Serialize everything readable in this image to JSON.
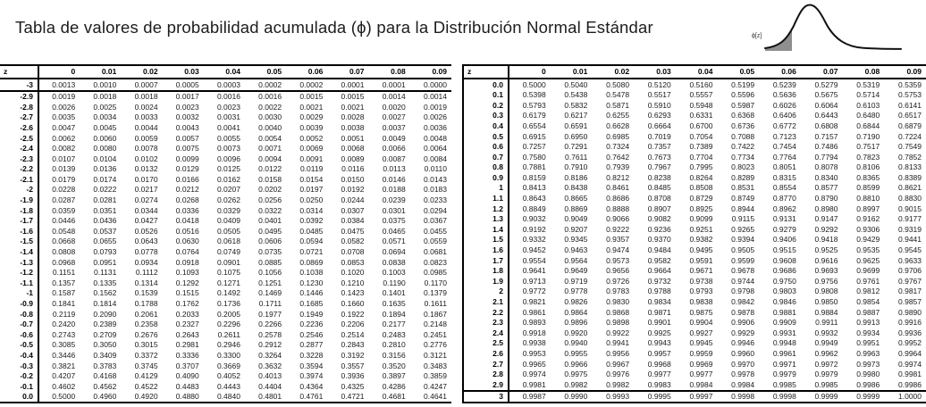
{
  "title": "Tabla de valores de probabilidad acumulada (ϕ) para la Distribución Normal Estándar",
  "curve_icon": {
    "label": "ϕ[z]",
    "shade_color": "#8f8f8f",
    "curve_color": "#111111"
  },
  "corner_header": "z",
  "column_headers": [
    "0",
    "0.01",
    "0.02",
    "0.03",
    "0.04",
    "0.05",
    "0.06",
    "0.07",
    "0.08",
    "0.09"
  ],
  "tables": [
    {
      "name": "negative-z",
      "rows": [
        {
          "z": "-3",
          "values": [
            "0.0013",
            "0.0010",
            "0.0007",
            "0.0005",
            "0.0003",
            "0.0002",
            "0.0002",
            "0.0001",
            "0.0001",
            "0.0000"
          ]
        },
        {
          "z": "-2.9",
          "values": [
            "0.0019",
            "0.0018",
            "0.0018",
            "0.0017",
            "0.0016",
            "0.0016",
            "0.0015",
            "0.0015",
            "0.0014",
            "0.0014"
          ]
        },
        {
          "z": "-2.8",
          "values": [
            "0.0026",
            "0.0025",
            "0.0024",
            "0.0023",
            "0.0023",
            "0.0022",
            "0.0021",
            "0.0021",
            "0.0020",
            "0.0019"
          ]
        },
        {
          "z": "-2.7",
          "values": [
            "0.0035",
            "0.0034",
            "0.0033",
            "0.0032",
            "0.0031",
            "0.0030",
            "0.0029",
            "0.0028",
            "0.0027",
            "0.0026"
          ]
        },
        {
          "z": "-2.6",
          "values": [
            "0.0047",
            "0.0045",
            "0.0044",
            "0.0043",
            "0.0041",
            "0.0040",
            "0.0039",
            "0.0038",
            "0.0037",
            "0.0036"
          ]
        },
        {
          "z": "-2.5",
          "values": [
            "0.0062",
            "0.0060",
            "0.0059",
            "0.0057",
            "0.0055",
            "0.0054",
            "0.0052",
            "0.0051",
            "0.0049",
            "0.0048"
          ]
        },
        {
          "z": "-2.4",
          "values": [
            "0.0082",
            "0.0080",
            "0.0078",
            "0.0075",
            "0.0073",
            "0.0071",
            "0.0069",
            "0.0068",
            "0.0066",
            "0.0064"
          ]
        },
        {
          "z": "-2.3",
          "values": [
            "0.0107",
            "0.0104",
            "0.0102",
            "0.0099",
            "0.0096",
            "0.0094",
            "0.0091",
            "0.0089",
            "0.0087",
            "0.0084"
          ]
        },
        {
          "z": "-2.2",
          "values": [
            "0.0139",
            "0.0136",
            "0.0132",
            "0.0129",
            "0.0125",
            "0.0122",
            "0.0119",
            "0.0116",
            "0.0113",
            "0.0110"
          ]
        },
        {
          "z": "-2.1",
          "values": [
            "0.0179",
            "0.0174",
            "0.0170",
            "0.0166",
            "0.0162",
            "0.0158",
            "0.0154",
            "0.0150",
            "0.0146",
            "0.0143"
          ]
        },
        {
          "z": "-2",
          "values": [
            "0.0228",
            "0.0222",
            "0.0217",
            "0.0212",
            "0.0207",
            "0.0202",
            "0.0197",
            "0.0192",
            "0.0188",
            "0.0183"
          ]
        },
        {
          "z": "-1.9",
          "values": [
            "0.0287",
            "0.0281",
            "0.0274",
            "0.0268",
            "0.0262",
            "0.0256",
            "0.0250",
            "0.0244",
            "0.0239",
            "0.0233"
          ]
        },
        {
          "z": "-1.8",
          "values": [
            "0.0359",
            "0.0351",
            "0.0344",
            "0.0336",
            "0.0329",
            "0.0322",
            "0.0314",
            "0.0307",
            "0.0301",
            "0.0294"
          ]
        },
        {
          "z": "-1.7",
          "values": [
            "0.0446",
            "0.0436",
            "0.0427",
            "0.0418",
            "0.0409",
            "0.0401",
            "0.0392",
            "0.0384",
            "0.0375",
            "0.0367"
          ]
        },
        {
          "z": "-1.6",
          "values": [
            "0.0548",
            "0.0537",
            "0.0526",
            "0.0516",
            "0.0505",
            "0.0495",
            "0.0485",
            "0.0475",
            "0.0465",
            "0.0455"
          ]
        },
        {
          "z": "-1.5",
          "values": [
            "0.0668",
            "0.0655",
            "0.0643",
            "0.0630",
            "0.0618",
            "0.0606",
            "0.0594",
            "0.0582",
            "0.0571",
            "0.0559"
          ]
        },
        {
          "z": "-1.4",
          "values": [
            "0.0808",
            "0.0793",
            "0.0778",
            "0.0764",
            "0.0749",
            "0.0735",
            "0.0721",
            "0.0708",
            "0.0694",
            "0.0681"
          ]
        },
        {
          "z": "-1.3",
          "values": [
            "0.0968",
            "0.0951",
            "0.0934",
            "0.0918",
            "0.0901",
            "0.0885",
            "0.0869",
            "0.0853",
            "0.0838",
            "0.0823"
          ]
        },
        {
          "z": "-1.2",
          "values": [
            "0.1151",
            "0.1131",
            "0.1112",
            "0.1093",
            "0.1075",
            "0.1056",
            "0.1038",
            "0.1020",
            "0.1003",
            "0.0985"
          ]
        },
        {
          "z": "-1.1",
          "values": [
            "0.1357",
            "0.1335",
            "0.1314",
            "0.1292",
            "0.1271",
            "0.1251",
            "0.1230",
            "0.1210",
            "0.1190",
            "0.1170"
          ]
        },
        {
          "z": "-1",
          "values": [
            "0.1587",
            "0.1562",
            "0.1539",
            "0.1515",
            "0.1492",
            "0.1469",
            "0.1446",
            "0.1423",
            "0.1401",
            "0.1379"
          ]
        },
        {
          "z": "-0.9",
          "values": [
            "0.1841",
            "0.1814",
            "0.1788",
            "0.1762",
            "0.1736",
            "0.1711",
            "0.1685",
            "0.1660",
            "0.1635",
            "0.1611"
          ]
        },
        {
          "z": "-0.8",
          "values": [
            "0.2119",
            "0.2090",
            "0.2061",
            "0.2033",
            "0.2005",
            "0.1977",
            "0.1949",
            "0.1922",
            "0.1894",
            "0.1867"
          ]
        },
        {
          "z": "-0.7",
          "values": [
            "0.2420",
            "0.2389",
            "0.2358",
            "0.2327",
            "0.2296",
            "0.2266",
            "0.2236",
            "0.2206",
            "0.2177",
            "0.2148"
          ]
        },
        {
          "z": "-0.6",
          "values": [
            "0.2743",
            "0.2709",
            "0.2676",
            "0.2643",
            "0.2611",
            "0.2578",
            "0.2546",
            "0.2514",
            "0.2483",
            "0.2451"
          ]
        },
        {
          "z": "-0.5",
          "values": [
            "0.3085",
            "0.3050",
            "0.3015",
            "0.2981",
            "0.2946",
            "0.2912",
            "0.2877",
            "0.2843",
            "0.2810",
            "0.2776"
          ]
        },
        {
          "z": "-0.4",
          "values": [
            "0.3446",
            "0.3409",
            "0.3372",
            "0.3336",
            "0.3300",
            "0.3264",
            "0.3228",
            "0.3192",
            "0.3156",
            "0.3121"
          ]
        },
        {
          "z": "-0.3",
          "values": [
            "0.3821",
            "0.3783",
            "0.3745",
            "0.3707",
            "0.3669",
            "0.3632",
            "0.3594",
            "0.3557",
            "0.3520",
            "0.3483"
          ]
        },
        {
          "z": "-0.2",
          "values": [
            "0.4207",
            "0.4168",
            "0.4129",
            "0.4090",
            "0.4052",
            "0.4013",
            "0.3974",
            "0.3936",
            "0.3897",
            "0.3859"
          ]
        },
        {
          "z": "-0.1",
          "values": [
            "0.4602",
            "0.4562",
            "0.4522",
            "0.4483",
            "0.4443",
            "0.4404",
            "0.4364",
            "0.4325",
            "0.4286",
            "0.4247"
          ]
        },
        {
          "z": "0.0",
          "values": [
            "0.5000",
            "0.4960",
            "0.4920",
            "0.4880",
            "0.4840",
            "0.4801",
            "0.4761",
            "0.4721",
            "0.4681",
            "0.4641"
          ]
        }
      ]
    },
    {
      "name": "positive-z",
      "rows": [
        {
          "z": "0.0",
          "values": [
            "0.5000",
            "0.5040",
            "0.5080",
            "0.5120",
            "0.5160",
            "0.5199",
            "0.5239",
            "0.5279",
            "0.5319",
            "0.5359"
          ]
        },
        {
          "z": "0.1",
          "values": [
            "0.5398",
            "0.5438",
            "0.5478",
            "0.5517",
            "0.5557",
            "0.5596",
            "0.5636",
            "0.5675",
            "0.5714",
            "0.5753"
          ]
        },
        {
          "z": "0.2",
          "values": [
            "0.5793",
            "0.5832",
            "0.5871",
            "0.5910",
            "0.5948",
            "0.5987",
            "0.6026",
            "0.6064",
            "0.6103",
            "0.6141"
          ]
        },
        {
          "z": "0.3",
          "values": [
            "0.6179",
            "0.6217",
            "0.6255",
            "0.6293",
            "0.6331",
            "0.6368",
            "0.6406",
            "0.6443",
            "0.6480",
            "0.6517"
          ]
        },
        {
          "z": "0.4",
          "values": [
            "0.6554",
            "0.6591",
            "0.6628",
            "0.6664",
            "0.6700",
            "0.6736",
            "0.6772",
            "0.6808",
            "0.6844",
            "0.6879"
          ]
        },
        {
          "z": "0.5",
          "values": [
            "0.6915",
            "0.6950",
            "0.6985",
            "0.7019",
            "0.7054",
            "0.7088",
            "0.7123",
            "0.7157",
            "0.7190",
            "0.7224"
          ]
        },
        {
          "z": "0.6",
          "values": [
            "0.7257",
            "0.7291",
            "0.7324",
            "0.7357",
            "0.7389",
            "0.7422",
            "0.7454",
            "0.7486",
            "0.7517",
            "0.7549"
          ]
        },
        {
          "z": "0.7",
          "values": [
            "0.7580",
            "0.7611",
            "0.7642",
            "0.7673",
            "0.7704",
            "0.7734",
            "0.7764",
            "0.7794",
            "0.7823",
            "0.7852"
          ]
        },
        {
          "z": "0.8",
          "values": [
            "0.7881",
            "0.7910",
            "0.7939",
            "0.7967",
            "0.7995",
            "0.8023",
            "0.8051",
            "0.8078",
            "0.8106",
            "0.8133"
          ]
        },
        {
          "z": "0.9",
          "values": [
            "0.8159",
            "0.8186",
            "0.8212",
            "0.8238",
            "0.8264",
            "0.8289",
            "0.8315",
            "0.8340",
            "0.8365",
            "0.8389"
          ]
        },
        {
          "z": "1",
          "values": [
            "0.8413",
            "0.8438",
            "0.8461",
            "0.8485",
            "0.8508",
            "0.8531",
            "0.8554",
            "0.8577",
            "0.8599",
            "0.8621"
          ]
        },
        {
          "z": "1.1",
          "values": [
            "0.8643",
            "0.8665",
            "0.8686",
            "0.8708",
            "0.8729",
            "0.8749",
            "0.8770",
            "0.8790",
            "0.8810",
            "0.8830"
          ]
        },
        {
          "z": "1.2",
          "values": [
            "0.8849",
            "0.8869",
            "0.8888",
            "0.8907",
            "0.8925",
            "0.8944",
            "0.8962",
            "0.8980",
            "0.8997",
            "0.9015"
          ]
        },
        {
          "z": "1.3",
          "values": [
            "0.9032",
            "0.9049",
            "0.9066",
            "0.9082",
            "0.9099",
            "0.9115",
            "0.9131",
            "0.9147",
            "0.9162",
            "0.9177"
          ]
        },
        {
          "z": "1.4",
          "values": [
            "0.9192",
            "0.9207",
            "0.9222",
            "0.9236",
            "0.9251",
            "0.9265",
            "0.9279",
            "0.9292",
            "0.9306",
            "0.9319"
          ]
        },
        {
          "z": "1.5",
          "values": [
            "0.9332",
            "0.9345",
            "0.9357",
            "0.9370",
            "0.9382",
            "0.9394",
            "0.9406",
            "0.9418",
            "0.9429",
            "0.9441"
          ]
        },
        {
          "z": "1.6",
          "values": [
            "0.9452",
            "0.9463",
            "0.9474",
            "0.9484",
            "0.9495",
            "0.9505",
            "0.9515",
            "0.9525",
            "0.9535",
            "0.9545"
          ]
        },
        {
          "z": "1.7",
          "values": [
            "0.9554",
            "0.9564",
            "0.9573",
            "0.9582",
            "0.9591",
            "0.9599",
            "0.9608",
            "0.9616",
            "0.9625",
            "0.9633"
          ]
        },
        {
          "z": "1.8",
          "values": [
            "0.9641",
            "0.9649",
            "0.9656",
            "0.9664",
            "0.9671",
            "0.9678",
            "0.9686",
            "0.9693",
            "0.9699",
            "0.9706"
          ]
        },
        {
          "z": "1.9",
          "values": [
            "0.9713",
            "0.9719",
            "0.9726",
            "0.9732",
            "0.9738",
            "0.9744",
            "0.9750",
            "0.9756",
            "0.9761",
            "0.9767"
          ]
        },
        {
          "z": "2",
          "values": [
            "0.9772",
            "0.9778",
            "0.9783",
            "0.9788",
            "0.9793",
            "0.9798",
            "0.9803",
            "0.9808",
            "0.9812",
            "0.9817"
          ]
        },
        {
          "z": "2.1",
          "values": [
            "0.9821",
            "0.9826",
            "0.9830",
            "0.9834",
            "0.9838",
            "0.9842",
            "0.9846",
            "0.9850",
            "0.9854",
            "0.9857"
          ]
        },
        {
          "z": "2.2",
          "values": [
            "0.9861",
            "0.9864",
            "0.9868",
            "0.9871",
            "0.9875",
            "0.9878",
            "0.9881",
            "0.9884",
            "0.9887",
            "0.9890"
          ]
        },
        {
          "z": "2.3",
          "values": [
            "0.9893",
            "0.9896",
            "0.9898",
            "0.9901",
            "0.9904",
            "0.9906",
            "0.9909",
            "0.9911",
            "0.9913",
            "0.9916"
          ]
        },
        {
          "z": "2.4",
          "values": [
            "0.9918",
            "0.9920",
            "0.9922",
            "0.9925",
            "0.9927",
            "0.9929",
            "0.9931",
            "0.9932",
            "0.9934",
            "0.9936"
          ]
        },
        {
          "z": "2.5",
          "values": [
            "0.9938",
            "0.9940",
            "0.9941",
            "0.9943",
            "0.9945",
            "0.9946",
            "0.9948",
            "0.9949",
            "0.9951",
            "0.9952"
          ]
        },
        {
          "z": "2.6",
          "values": [
            "0.9953",
            "0.9955",
            "0.9956",
            "0.9957",
            "0.9959",
            "0.9960",
            "0.9961",
            "0.9962",
            "0.9963",
            "0.9964"
          ]
        },
        {
          "z": "2.7",
          "values": [
            "0.9965",
            "0.9966",
            "0.9967",
            "0.9968",
            "0.9969",
            "0.9970",
            "0.9971",
            "0.9972",
            "0.9973",
            "0.9974"
          ]
        },
        {
          "z": "2.8",
          "values": [
            "0.9974",
            "0.9975",
            "0.9976",
            "0.9977",
            "0.9977",
            "0.9978",
            "0.9979",
            "0.9979",
            "0.9980",
            "0.9981"
          ]
        },
        {
          "z": "2.9",
          "values": [
            "0.9981",
            "0.9982",
            "0.9982",
            "0.9983",
            "0.9984",
            "0.9984",
            "0.9985",
            "0.9985",
            "0.9986",
            "0.9986"
          ]
        },
        {
          "z": "3",
          "values": [
            "0.9987",
            "0.9990",
            "0.9993",
            "0.9995",
            "0.9997",
            "0.9998",
            "0.9998",
            "0.9999",
            "0.9999",
            "1.0000"
          ]
        }
      ]
    }
  ]
}
